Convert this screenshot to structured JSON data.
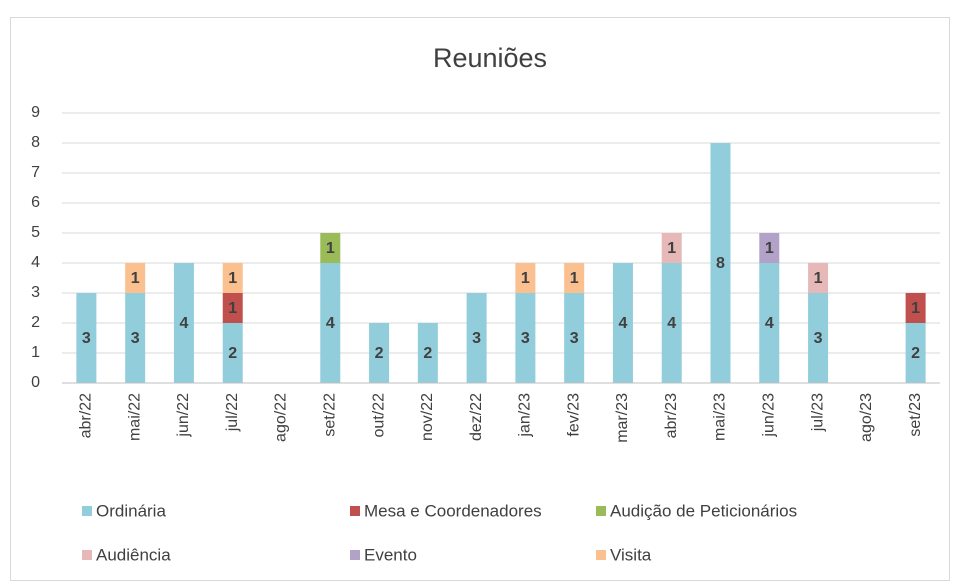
{
  "chart_data": {
    "type": "stacked_bar",
    "title": "Reuniões",
    "categories": [
      "abr/22",
      "mai/22",
      "jun/22",
      "jul/22",
      "ago/22",
      "set/22",
      "out/22",
      "nov/22",
      "dez/22",
      "jan/23",
      "fev/23",
      "mar/23",
      "abr/23",
      "mai/23",
      "jun/23",
      "jul/23",
      "ago/23",
      "set/23"
    ],
    "series": [
      {
        "name": "Ordinária",
        "color": "#92cddc",
        "values": [
          3,
          3,
          4,
          2,
          null,
          4,
          2,
          2,
          3,
          3,
          3,
          4,
          4,
          8,
          4,
          3,
          null,
          2
        ]
      },
      {
        "name": "Mesa e Coordenadores",
        "color": "#c0504d",
        "values": [
          null,
          null,
          null,
          1,
          null,
          null,
          null,
          null,
          null,
          null,
          null,
          null,
          null,
          null,
          null,
          null,
          null,
          1
        ]
      },
      {
        "name": "Audição de Peticionários",
        "color": "#9bbb59",
        "values": [
          null,
          null,
          null,
          null,
          null,
          1,
          null,
          null,
          null,
          null,
          null,
          null,
          null,
          null,
          null,
          null,
          null,
          null
        ]
      },
      {
        "name": "Audiência",
        "color": "#e6b9b8",
        "values": [
          null,
          null,
          null,
          null,
          null,
          null,
          null,
          null,
          null,
          null,
          null,
          null,
          1,
          null,
          null,
          1,
          null,
          null
        ]
      },
      {
        "name": "Evento",
        "color": "#b3a2c7",
        "values": [
          null,
          null,
          null,
          null,
          null,
          null,
          null,
          null,
          null,
          null,
          null,
          null,
          null,
          null,
          1,
          null,
          null,
          null
        ]
      },
      {
        "name": "Visita",
        "color": "#fac090",
        "values": [
          null,
          1,
          null,
          1,
          null,
          null,
          null,
          null,
          null,
          1,
          1,
          null,
          null,
          null,
          null,
          null,
          null,
          null
        ]
      }
    ],
    "ylim": [
      0,
      9
    ],
    "yticks": [
      0,
      1,
      2,
      3,
      4,
      5,
      6,
      7,
      8,
      9
    ],
    "grid": true
  }
}
